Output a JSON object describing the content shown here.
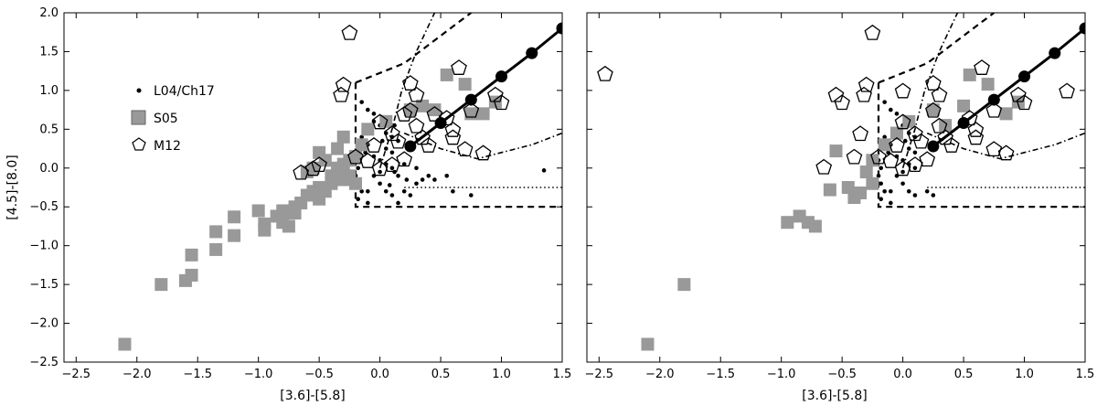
{
  "chart_data": [
    {
      "type": "scatter",
      "xlabel": "[3.6]-[5.8]",
      "ylabel": "[4.5]-[8.0]",
      "xlim": [
        -2.6,
        1.5
      ],
      "ylim": [
        -2.5,
        2.0
      ],
      "xticks": [
        "−2.5",
        "−2.0",
        "−1.5",
        "−1.0",
        "−0.5",
        "0.0",
        "0.5",
        "1.0",
        "1.5"
      ],
      "yticks": [
        "2.0",
        "1.5",
        "1.0",
        "0.5",
        "0.0",
        "−0.5",
        "−1.0",
        "−1.5",
        "−2.0",
        "−2.5"
      ],
      "grid": false,
      "legend": {
        "position": "upper-left",
        "entries": [
          {
            "label": "L04/Ch17",
            "marker": "dot"
          },
          {
            "label": "S05",
            "marker": "square"
          },
          {
            "label": "M12",
            "marker": "pentagon"
          }
        ]
      },
      "series": [
        {
          "name": "L04/Ch17",
          "marker": "dot",
          "color": "#000000",
          "points": [
            [
              -0.15,
              0.85
            ],
            [
              -0.1,
              0.75
            ],
            [
              -0.05,
              0.7
            ],
            [
              0.0,
              0.55
            ],
            [
              0.05,
              0.45
            ],
            [
              0.1,
              0.4
            ],
            [
              0.15,
              0.35
            ],
            [
              -0.15,
              0.4
            ],
            [
              -0.1,
              0.3
            ],
            [
              -0.12,
              0.2
            ],
            [
              -0.05,
              0.15
            ],
            [
              0.0,
              0.1
            ],
            [
              0.05,
              0.05
            ],
            [
              0.1,
              0.0
            ],
            [
              0.12,
              -0.05
            ],
            [
              0.15,
              -0.1
            ],
            [
              -0.2,
              0.1
            ],
            [
              -0.18,
              0.0
            ],
            [
              -0.2,
              -0.1
            ],
            [
              -0.18,
              -0.2
            ],
            [
              -0.15,
              -0.3
            ],
            [
              -0.18,
              -0.4
            ],
            [
              -0.1,
              -0.3
            ],
            [
              0.0,
              -0.2
            ],
            [
              0.05,
              -0.3
            ],
            [
              0.1,
              -0.35
            ],
            [
              0.2,
              -0.3
            ],
            [
              0.25,
              -0.35
            ],
            [
              0.3,
              -0.2
            ],
            [
              0.35,
              -0.15
            ],
            [
              0.4,
              -0.1
            ],
            [
              0.45,
              -0.15
            ],
            [
              0.55,
              -0.1
            ],
            [
              0.6,
              -0.3
            ],
            [
              0.75,
              -0.35
            ],
            [
              1.35,
              -0.03
            ],
            [
              0.2,
              0.05
            ],
            [
              0.22,
              -0.15
            ],
            [
              0.3,
              0.0
            ],
            [
              0.0,
              -0.05
            ],
            [
              -0.05,
              -0.1
            ],
            [
              0.08,
              -0.22
            ],
            [
              0.15,
              -0.45
            ],
            [
              -0.1,
              -0.45
            ],
            [
              0.05,
              0.25
            ],
            [
              0.1,
              0.2
            ],
            [
              -0.08,
              0.5
            ],
            [
              -0.05,
              0.6
            ],
            [
              0.12,
              0.55
            ],
            [
              0.02,
              0.35
            ]
          ]
        },
        {
          "name": "S05",
          "marker": "square",
          "color": "#999999",
          "points": [
            [
              -2.1,
              -2.27
            ],
            [
              -1.8,
              -1.5
            ],
            [
              -1.6,
              -1.45
            ],
            [
              -1.55,
              -1.38
            ],
            [
              -1.55,
              -1.12
            ],
            [
              -1.35,
              -0.82
            ],
            [
              -1.35,
              -1.05
            ],
            [
              -1.2,
              -0.63
            ],
            [
              -1.2,
              -0.87
            ],
            [
              -1.0,
              -0.55
            ],
            [
              -0.95,
              -0.72
            ],
            [
              -0.95,
              -0.8
            ],
            [
              -0.85,
              -0.62
            ],
            [
              -0.8,
              -0.55
            ],
            [
              -0.8,
              -0.7
            ],
            [
              -0.75,
              -0.75
            ],
            [
              -0.7,
              -0.5
            ],
            [
              -0.7,
              -0.58
            ],
            [
              -0.65,
              -0.45
            ],
            [
              -0.6,
              -0.35
            ],
            [
              -0.55,
              -0.3
            ],
            [
              -0.5,
              -0.25
            ],
            [
              -0.5,
              -0.4
            ],
            [
              -0.45,
              -0.3
            ],
            [
              -0.4,
              -0.2
            ],
            [
              -0.4,
              -0.1
            ],
            [
              -0.35,
              0.0
            ],
            [
              -0.3,
              0.05
            ],
            [
              -0.3,
              -0.15
            ],
            [
              -0.25,
              -0.1
            ],
            [
              -0.25,
              0.1
            ],
            [
              -0.2,
              0.15
            ],
            [
              -0.2,
              -0.2
            ],
            [
              -0.15,
              0.3
            ],
            [
              -0.5,
              0.2
            ],
            [
              -0.45,
              0.1
            ],
            [
              -0.55,
              0.0
            ],
            [
              -0.6,
              -0.05
            ],
            [
              -0.35,
              0.25
            ],
            [
              -0.3,
              0.4
            ],
            [
              -0.1,
              0.5
            ],
            [
              0.05,
              0.6
            ],
            [
              0.25,
              0.75
            ],
            [
              0.35,
              0.8
            ],
            [
              0.45,
              0.75
            ],
            [
              0.55,
              1.2
            ],
            [
              0.7,
              1.08
            ],
            [
              0.75,
              0.7
            ],
            [
              0.85,
              0.7
            ],
            [
              0.95,
              0.85
            ]
          ]
        },
        {
          "name": "M12",
          "marker": "pentagon",
          "color": "#ffffff",
          "points": [
            [
              -0.25,
              1.75
            ],
            [
              -0.3,
              1.08
            ],
            [
              -0.32,
              0.95
            ],
            [
              -0.5,
              0.05
            ],
            [
              -0.55,
              0.0
            ],
            [
              -0.65,
              -0.05
            ],
            [
              -0.2,
              0.15
            ],
            [
              -0.1,
              0.1
            ],
            [
              0.0,
              0.0
            ],
            [
              0.1,
              0.05
            ],
            [
              0.2,
              0.12
            ],
            [
              0.25,
              1.1
            ],
            [
              0.3,
              0.95
            ],
            [
              0.25,
              0.75
            ],
            [
              0.3,
              0.55
            ],
            [
              0.35,
              0.4
            ],
            [
              0.4,
              0.3
            ],
            [
              0.15,
              0.35
            ],
            [
              0.1,
              0.45
            ],
            [
              0.0,
              0.6
            ],
            [
              -0.05,
              0.3
            ],
            [
              0.6,
              0.4
            ],
            [
              0.7,
              0.25
            ],
            [
              0.85,
              0.2
            ],
            [
              0.95,
              0.95
            ],
            [
              1.0,
              0.85
            ],
            [
              0.65,
              1.3
            ],
            [
              0.75,
              0.75
            ],
            [
              0.45,
              0.7
            ],
            [
              0.55,
              0.65
            ],
            [
              0.6,
              0.5
            ],
            [
              0.2,
              0.7
            ]
          ]
        },
        {
          "name": "",
          "marker": "large-dot-line",
          "color": "#000000",
          "points": [
            [
              0.25,
              0.28
            ],
            [
              0.5,
              0.58
            ],
            [
              0.75,
              0.88
            ],
            [
              1.0,
              1.18
            ],
            [
              1.25,
              1.48
            ],
            [
              1.5,
              1.8
            ]
          ]
        }
      ]
    },
    {
      "type": "scatter",
      "xlabel": "[3.6]-[5.8]",
      "ylabel": "",
      "xlim": [
        -2.6,
        1.5
      ],
      "ylim": [
        -2.5,
        2.0
      ],
      "xticks": [
        "−2.5",
        "−2.0",
        "−1.5",
        "−1.0",
        "−0.5",
        "0.0",
        "0.5",
        "1.0",
        "1.5"
      ],
      "yticks": [],
      "grid": false,
      "series": [
        {
          "name": "L04/Ch17",
          "marker": "dot",
          "color": "#000000",
          "points": [
            [
              -0.15,
              0.85
            ],
            [
              -0.1,
              0.75
            ],
            [
              -0.05,
              0.7
            ],
            [
              0.0,
              0.55
            ],
            [
              0.05,
              0.45
            ],
            [
              0.1,
              0.4
            ],
            [
              -0.15,
              0.4
            ],
            [
              -0.1,
              0.3
            ],
            [
              -0.12,
              0.2
            ],
            [
              -0.05,
              0.15
            ],
            [
              0.0,
              0.1
            ],
            [
              0.05,
              0.05
            ],
            [
              0.1,
              0.0
            ],
            [
              -0.2,
              0.1
            ],
            [
              -0.18,
              0.0
            ],
            [
              -0.2,
              -0.1
            ],
            [
              -0.18,
              -0.2
            ],
            [
              -0.15,
              -0.3
            ],
            [
              -0.18,
              -0.4
            ],
            [
              -0.1,
              -0.3
            ],
            [
              0.0,
              -0.2
            ],
            [
              0.05,
              -0.3
            ],
            [
              0.1,
              -0.35
            ],
            [
              0.2,
              -0.3
            ],
            [
              0.25,
              -0.35
            ],
            [
              0.0,
              -0.05
            ],
            [
              -0.05,
              -0.1
            ],
            [
              -0.1,
              -0.45
            ],
            [
              0.05,
              0.25
            ],
            [
              0.1,
              0.2
            ],
            [
              -0.08,
              0.5
            ],
            [
              0.02,
              0.35
            ]
          ]
        },
        {
          "name": "S05",
          "marker": "square",
          "color": "#999999",
          "points": [
            [
              -2.1,
              -2.27
            ],
            [
              -1.8,
              -1.5
            ],
            [
              -0.95,
              -0.7
            ],
            [
              -0.85,
              -0.62
            ],
            [
              -0.78,
              -0.7
            ],
            [
              -0.72,
              -0.75
            ],
            [
              -0.6,
              -0.28
            ],
            [
              -0.55,
              0.22
            ],
            [
              -0.45,
              -0.25
            ],
            [
              -0.4,
              -0.38
            ],
            [
              -0.35,
              -0.32
            ],
            [
              -0.3,
              -0.05
            ],
            [
              -0.25,
              0.1
            ],
            [
              -0.25,
              -0.2
            ],
            [
              -0.15,
              0.3
            ],
            [
              -0.05,
              0.45
            ],
            [
              0.05,
              0.6
            ],
            [
              0.25,
              0.75
            ],
            [
              0.5,
              0.8
            ],
            [
              0.55,
              1.2
            ],
            [
              0.7,
              1.08
            ],
            [
              0.85,
              0.7
            ],
            [
              0.95,
              0.85
            ],
            [
              0.35,
              0.55
            ]
          ]
        },
        {
          "name": "M12",
          "marker": "pentagon",
          "color": "#ffffff",
          "points": [
            [
              -2.45,
              1.22
            ],
            [
              -0.25,
              1.75
            ],
            [
              -0.3,
              1.08
            ],
            [
              -0.32,
              0.95
            ],
            [
              -0.55,
              0.95
            ],
            [
              -0.5,
              0.85
            ],
            [
              -0.65,
              0.02
            ],
            [
              -0.4,
              0.15
            ],
            [
              -0.2,
              0.15
            ],
            [
              -0.1,
              0.1
            ],
            [
              0.0,
              0.0
            ],
            [
              0.1,
              0.05
            ],
            [
              0.2,
              0.12
            ],
            [
              0.0,
              1.0
            ],
            [
              0.25,
              1.1
            ],
            [
              0.3,
              0.95
            ],
            [
              0.25,
              0.75
            ],
            [
              0.3,
              0.55
            ],
            [
              0.35,
              0.4
            ],
            [
              0.4,
              0.3
            ],
            [
              0.15,
              0.35
            ],
            [
              0.1,
              0.45
            ],
            [
              0.0,
              0.6
            ],
            [
              -0.05,
              0.3
            ],
            [
              0.6,
              0.4
            ],
            [
              0.75,
              0.25
            ],
            [
              0.85,
              0.2
            ],
            [
              0.95,
              0.95
            ],
            [
              1.0,
              0.85
            ],
            [
              0.65,
              1.3
            ],
            [
              0.75,
              0.75
            ],
            [
              1.35,
              1.0
            ],
            [
              0.55,
              0.65
            ],
            [
              0.6,
              0.5
            ],
            [
              -0.35,
              0.45
            ]
          ]
        },
        {
          "name": "",
          "marker": "large-dot-line",
          "color": "#000000",
          "points": [
            [
              0.25,
              0.28
            ],
            [
              0.5,
              0.58
            ],
            [
              0.75,
              0.88
            ],
            [
              1.0,
              1.18
            ],
            [
              1.25,
              1.48
            ],
            [
              1.5,
              1.8
            ]
          ]
        }
      ]
    }
  ],
  "reference_lines": {
    "box_dashed": [
      [
        -0.2,
        1.1
      ],
      [
        -0.2,
        -0.5
      ],
      [
        1.5,
        -0.5
      ]
    ],
    "box_dashed_top": [
      [
        -0.2,
        1.1
      ],
      [
        0.2,
        1.35
      ],
      [
        0.75,
        2.0
      ]
    ],
    "dotted_horizontal": [
      [
        0.2,
        -0.25
      ],
      [
        1.5,
        -0.25
      ]
    ],
    "dashdot_left": [
      [
        0.0,
        0.0
      ],
      [
        0.1,
        0.5
      ],
      [
        0.18,
        1.0
      ],
      [
        0.3,
        1.5
      ],
      [
        0.45,
        2.0
      ]
    ],
    "dashdot_right": [
      [
        0.2,
        0.45
      ],
      [
        0.5,
        0.25
      ],
      [
        0.8,
        0.12
      ],
      [
        1.0,
        0.2
      ],
      [
        1.25,
        0.3
      ],
      [
        1.5,
        0.45
      ]
    ]
  }
}
